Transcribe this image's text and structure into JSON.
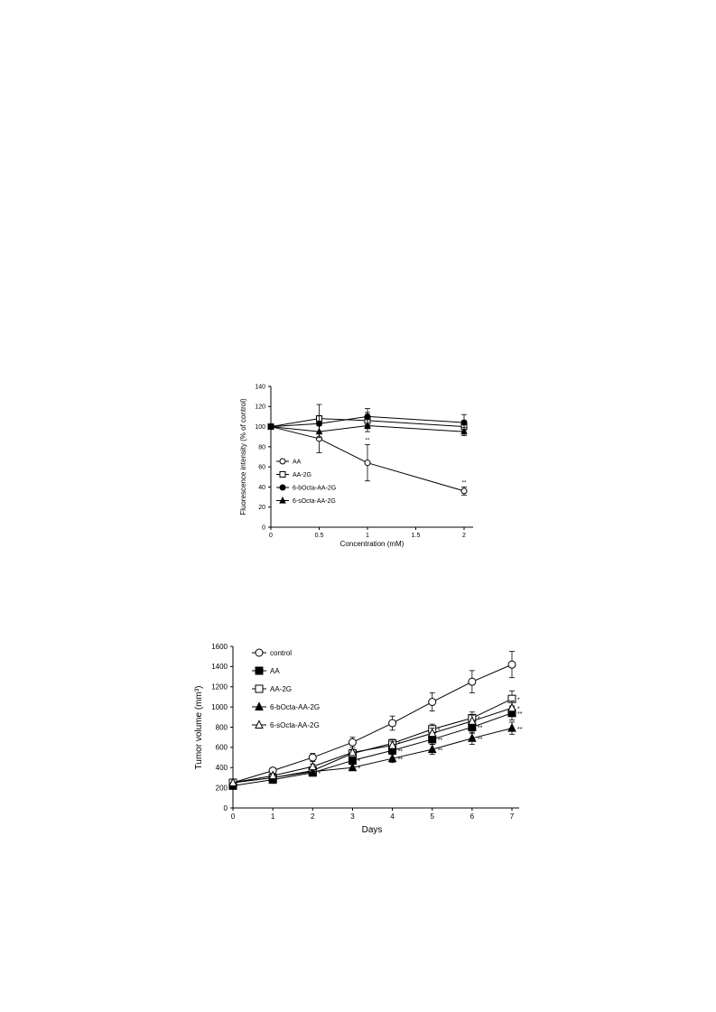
{
  "chart_data": [
    {
      "type": "line",
      "title": "",
      "xlabel": "Concentration (mM)",
      "ylabel": "Fluorescence intensity (% of control)",
      "xlim": [
        0,
        2
      ],
      "ylim": [
        0,
        140
      ],
      "xticks": [
        "0",
        "0.5",
        "1",
        "1.5",
        "2"
      ],
      "yticks": [
        "0",
        "20",
        "40",
        "60",
        "80",
        "100",
        "120",
        "140"
      ],
      "legend_position": "bottom-left",
      "series": [
        {
          "name": "AA",
          "marker": "circle-open",
          "x": [
            0,
            0.5,
            1,
            2
          ],
          "y": [
            100,
            88,
            64,
            36
          ],
          "err": [
            0,
            14,
            18,
            4
          ],
          "labels": [
            "",
            "",
            "**",
            "**"
          ]
        },
        {
          "name": "AA-2G",
          "marker": "square-open",
          "x": [
            0,
            0.5,
            1,
            2
          ],
          "y": [
            100,
            108,
            106,
            100
          ],
          "err": [
            0,
            14,
            8,
            6
          ],
          "labels": [
            "",
            "",
            "",
            ""
          ]
        },
        {
          "name": "6-bOcta-AA-2G",
          "marker": "circle-filled",
          "x": [
            0,
            0.5,
            1,
            2
          ],
          "y": [
            100,
            103,
            110,
            104
          ],
          "err": [
            0,
            8,
            8,
            8
          ],
          "labels": [
            "",
            "",
            "",
            ""
          ]
        },
        {
          "name": "6-sOcta-AA-2G",
          "marker": "triangle-filled",
          "x": [
            0,
            0.5,
            1,
            2
          ],
          "y": [
            100,
            95,
            101,
            95
          ],
          "err": [
            0,
            6,
            6,
            4
          ],
          "labels": [
            "",
            "",
            "",
            ""
          ]
        }
      ]
    },
    {
      "type": "line",
      "title": "",
      "xlabel": "Days",
      "ylabel": "Tumor volume (mm³)",
      "xlim": [
        0,
        7
      ],
      "ylim": [
        0,
        1600
      ],
      "xticks": [
        "0",
        "1",
        "2",
        "3",
        "4",
        "5",
        "6",
        "7"
      ],
      "yticks": [
        "0",
        "200",
        "400",
        "600",
        "800",
        "1000",
        "1200",
        "1400",
        "1600"
      ],
      "legend_position": "top-left",
      "series": [
        {
          "name": "control",
          "marker": "circle-open",
          "x": [
            0,
            1,
            2,
            3,
            4,
            5,
            6,
            7
          ],
          "y": [
            250,
            370,
            500,
            650,
            840,
            1050,
            1250,
            1420
          ],
          "err": [
            0,
            30,
            40,
            50,
            70,
            90,
            110,
            130
          ],
          "labels": [
            "",
            "",
            "",
            "",
            "",
            "",
            "",
            ""
          ]
        },
        {
          "name": "AA",
          "marker": "square-filled",
          "x": [
            0,
            1,
            2,
            3,
            4,
            5,
            6,
            7
          ],
          "y": [
            220,
            280,
            350,
            470,
            570,
            680,
            800,
            940
          ],
          "err": [
            0,
            20,
            25,
            30,
            40,
            50,
            60,
            70
          ],
          "labels": [
            "",
            "",
            "*",
            "*",
            "**",
            "**",
            "**",
            "**"
          ]
        },
        {
          "name": "AA-2G",
          "marker": "square-open",
          "x": [
            0,
            1,
            2,
            3,
            4,
            5,
            6,
            7
          ],
          "y": [
            250,
            300,
            370,
            540,
            640,
            780,
            890,
            1080
          ],
          "err": [
            0,
            20,
            25,
            30,
            40,
            50,
            60,
            80
          ],
          "labels": [
            "",
            "",
            "",
            "",
            "*",
            "*",
            "*",
            "*"
          ]
        },
        {
          "name": "6-bOcta-AA-2G",
          "marker": "triangle-filled",
          "x": [
            0,
            1,
            2,
            3,
            4,
            5,
            6,
            7
          ],
          "y": [
            250,
            300,
            360,
            400,
            490,
            580,
            690,
            790
          ],
          "err": [
            0,
            20,
            25,
            30,
            40,
            50,
            60,
            60
          ],
          "labels": [
            "",
            "",
            "",
            "*",
            "**",
            "**",
            "**",
            "**"
          ]
        },
        {
          "name": "6-sOcta-AA-2G",
          "marker": "triangle-open",
          "x": [
            0,
            1,
            2,
            3,
            4,
            5,
            6,
            7
          ],
          "y": [
            250,
            320,
            410,
            550,
            620,
            740,
            860,
            990
          ],
          "err": [
            0,
            20,
            25,
            30,
            40,
            50,
            60,
            70
          ],
          "labels": [
            "",
            "",
            "",
            "",
            "",
            "",
            "",
            "*"
          ]
        }
      ]
    }
  ]
}
